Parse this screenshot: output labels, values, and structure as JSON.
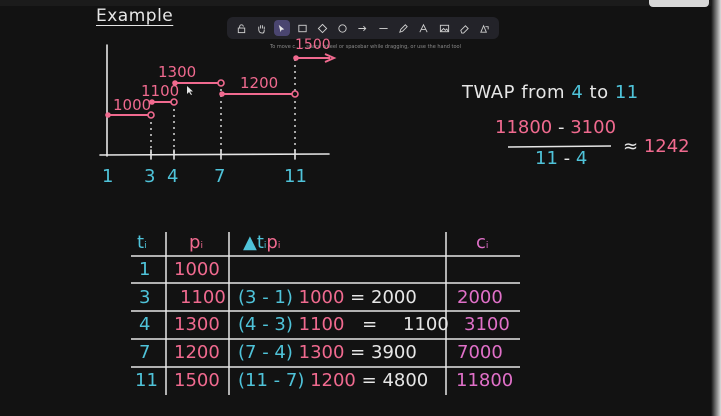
{
  "title": "Example",
  "toolbar": {
    "tools": [
      "lock-icon",
      "hand-icon",
      "pointer-icon",
      "rectangle-icon",
      "diamond-icon",
      "ellipse-icon",
      "arrow-icon",
      "line-icon",
      "pencil-icon",
      "text-icon",
      "image-icon",
      "eraser-icon",
      "shapes-icon"
    ],
    "active": "pointer-icon",
    "hint": "To move c... ...space wheel or spacebar while dragging, or use the hand tool"
  },
  "chart": {
    "step_labels": [
      "1000",
      "1100",
      "1300",
      "1200",
      "1500"
    ],
    "x_ticks": [
      "1",
      "3",
      "4",
      "7",
      "11"
    ],
    "colors": {
      "pink": "#f06a8f",
      "blue": "#4fc3d9",
      "white": "#e6e6e6"
    }
  },
  "formula": {
    "prefix": "TWAP from",
    "from": "4",
    "to_word": "to",
    "to": "11",
    "num_a": "11800",
    "num_sep": "-",
    "num_b": "3100",
    "den_a": "11",
    "den_sep": "-",
    "den_b": "4",
    "approx_sign": "≈",
    "result": "1242"
  },
  "table": {
    "headers": {
      "t": "t",
      "p": "p",
      "dtp": "t",
      "dtp_p": "p",
      "c": "c",
      "sub": "i"
    },
    "rows": [
      {
        "t": "1",
        "p": "1000",
        "formula": "",
        "eq": "",
        "value": "",
        "c": ""
      },
      {
        "t": "3",
        "p": "1100",
        "formula": "(3 - 1)",
        "formula_p": "1000",
        "eq": "=",
        "value": "2000",
        "c": "2000"
      },
      {
        "t": "4",
        "p": "1300",
        "formula": "(4 - 3)",
        "formula_p": "1100",
        "eq": "=",
        "value": "1100",
        "c": "3100"
      },
      {
        "t": "7",
        "p": "1200",
        "formula": "(7 - 4)",
        "formula_p": "1300",
        "eq": "=",
        "value": "3900",
        "c": "7000"
      },
      {
        "t": "11",
        "p": "1500",
        "formula": "(11 - 7)",
        "formula_p": "1200",
        "eq": "=",
        "value": "4800",
        "c": "11800"
      }
    ]
  }
}
